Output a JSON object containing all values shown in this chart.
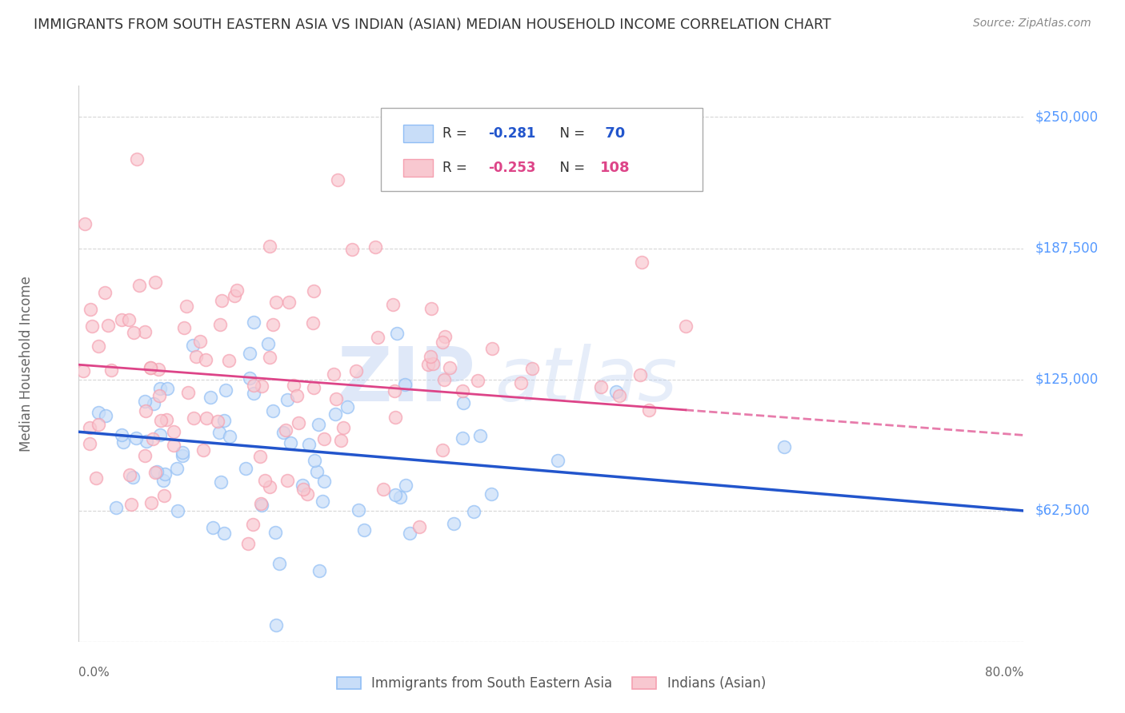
{
  "title": "IMMIGRANTS FROM SOUTH EASTERN ASIA VS INDIAN (ASIAN) MEDIAN HOUSEHOLD INCOME CORRELATION CHART",
  "source": "Source: ZipAtlas.com",
  "ylabel": "Median Household Income",
  "watermark_zip": "ZIP",
  "watermark_atlas": "atlas",
  "xmin": 0.0,
  "xmax": 0.8,
  "ymin": 0,
  "ymax": 265000,
  "ytick_vals": [
    0,
    62500,
    125000,
    187500,
    250000
  ],
  "ytick_labels": [
    "",
    "$62,500",
    "$125,000",
    "$187,500",
    "$250,000"
  ],
  "legend_label1": "Immigrants from South Eastern Asia",
  "legend_label2": "Indians (Asian)",
  "blue_color": "#90bef5",
  "pink_color": "#f5a0b0",
  "blue_fill": "#c8ddf8",
  "pink_fill": "#f8c8d0",
  "blue_line_color": "#2255cc",
  "pink_line_color": "#dd4488",
  "blue_R": -0.281,
  "blue_N": 70,
  "pink_R": -0.253,
  "pink_N": 108,
  "blue_intercept": 100000,
  "blue_slope": -47000,
  "pink_intercept": 132000,
  "pink_slope": -42000,
  "background_color": "#ffffff",
  "grid_color": "#cccccc",
  "title_color": "#333333",
  "axis_label_color": "#666666",
  "ytick_color": "#5599ff",
  "xtick_color": "#666666",
  "seed": 42
}
